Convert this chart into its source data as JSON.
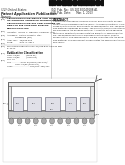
{
  "bg_color": "#ffffff",
  "barcode_color": "#111111",
  "text_color": "#222222",
  "light_gray": "#cccccc",
  "mid_gray": "#aaaaaa",
  "die_fill": "#dddddd",
  "substrate_fill": "#cccccc",
  "encap_fill": "#e8e8e8",
  "diagram_border": "#555555",
  "header_left": [
    "(12) United States",
    "Patent Application Publication",
    "Nguyen"
  ],
  "header_right_1": "(10) Pub. No.: US 2013/0049188 A1",
  "header_right_2": "(43) Pub. Date:    Mar. 1, 2013",
  "pub_no_label": "(10) Pub. No.:",
  "pub_date_label": "(43) Pub. Date:",
  "abstract_text": [
    "A semiconductor device includes a carrier and a plurality of semi-",
    "conductor die disposed over the carrier. An adhesive material is dis-",
    "posed over the carrier and plurality of semiconductor die. The adhe-",
    "sive material comprises an epoxy. The plurality of semiconductor die",
    "are disposed in the adhesive material. A quantity of the adhesive",
    "material is selected to encapsulate the plurality of semiconductor",
    "die. The adhesive material is disposed over the carrier prior to",
    "encapsulation. The semiconductor die are imprinted into the adhe-",
    "sive material. The encapsulant encapsulates the semiconductor die",
    "and carrier."
  ]
}
